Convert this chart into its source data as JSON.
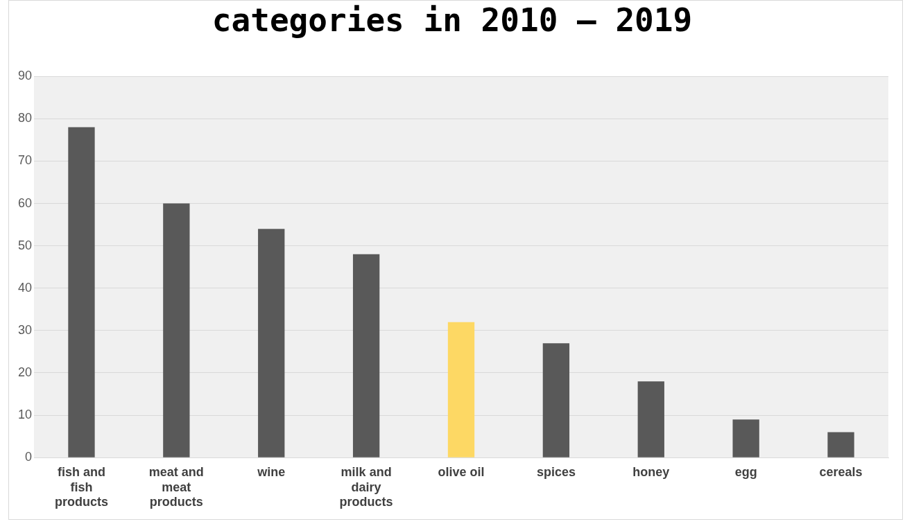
{
  "chart_data": {
    "type": "bar",
    "title": "categories in 2010 – 2019",
    "categories": [
      "fish and fish products",
      "meat and meat products",
      "wine",
      "milk and dairy products",
      "olive oil",
      "spices",
      "honey",
      "egg",
      "cereals"
    ],
    "values": [
      78,
      60,
      54,
      48,
      32,
      27,
      18,
      9,
      6
    ],
    "colors": [
      "#595959",
      "#595959",
      "#595959",
      "#595959",
      "#fdd864",
      "#595959",
      "#595959",
      "#595959",
      "#595959"
    ],
    "ylim": [
      0,
      90
    ],
    "yticks": [
      0,
      10,
      20,
      30,
      40,
      50,
      60,
      70,
      80,
      90
    ],
    "grid": "y",
    "legend": false
  }
}
